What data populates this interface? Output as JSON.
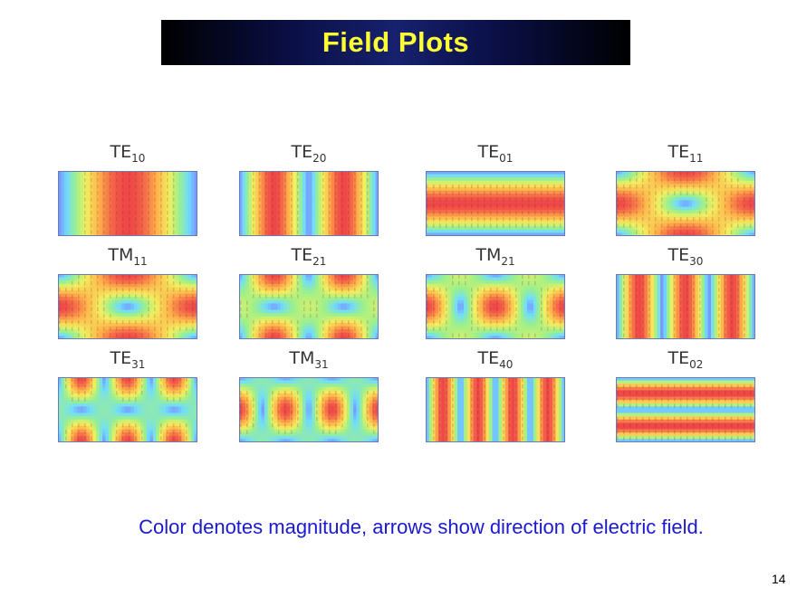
{
  "slide": {
    "title": "Field Plots",
    "caption": "Color denotes magnitude, arrows show direction of electric field.",
    "page_number": "14"
  },
  "modes": [
    {
      "prefix": "TE",
      "sub": "10",
      "kind": "TE",
      "m": 1,
      "n": 0
    },
    {
      "prefix": "TE",
      "sub": "20",
      "kind": "TE",
      "m": 2,
      "n": 0
    },
    {
      "prefix": "TE",
      "sub": "01",
      "kind": "TE",
      "m": 0,
      "n": 1
    },
    {
      "prefix": "TE",
      "sub": "11",
      "kind": "TE",
      "m": 1,
      "n": 1
    },
    {
      "prefix": "TM",
      "sub": "11",
      "kind": "TM",
      "m": 1,
      "n": 1
    },
    {
      "prefix": "TE",
      "sub": "21",
      "kind": "TE",
      "m": 2,
      "n": 1
    },
    {
      "prefix": "TM",
      "sub": "21",
      "kind": "TM",
      "m": 2,
      "n": 1
    },
    {
      "prefix": "TE",
      "sub": "30",
      "kind": "TE",
      "m": 3,
      "n": 0
    },
    {
      "prefix": "TE",
      "sub": "31",
      "kind": "TE",
      "m": 3,
      "n": 1
    },
    {
      "prefix": "TM",
      "sub": "31",
      "kind": "TM",
      "m": 3,
      "n": 1
    },
    {
      "prefix": "TE",
      "sub": "40",
      "kind": "TE",
      "m": 4,
      "n": 0
    },
    {
      "prefix": "TE",
      "sub": "02",
      "kind": "TE",
      "m": 0,
      "n": 2
    }
  ],
  "colormap": [
    "#7b8cff",
    "#6fdcff",
    "#9cf08a",
    "#f2f060",
    "#ffb24a",
    "#ef4848"
  ]
}
